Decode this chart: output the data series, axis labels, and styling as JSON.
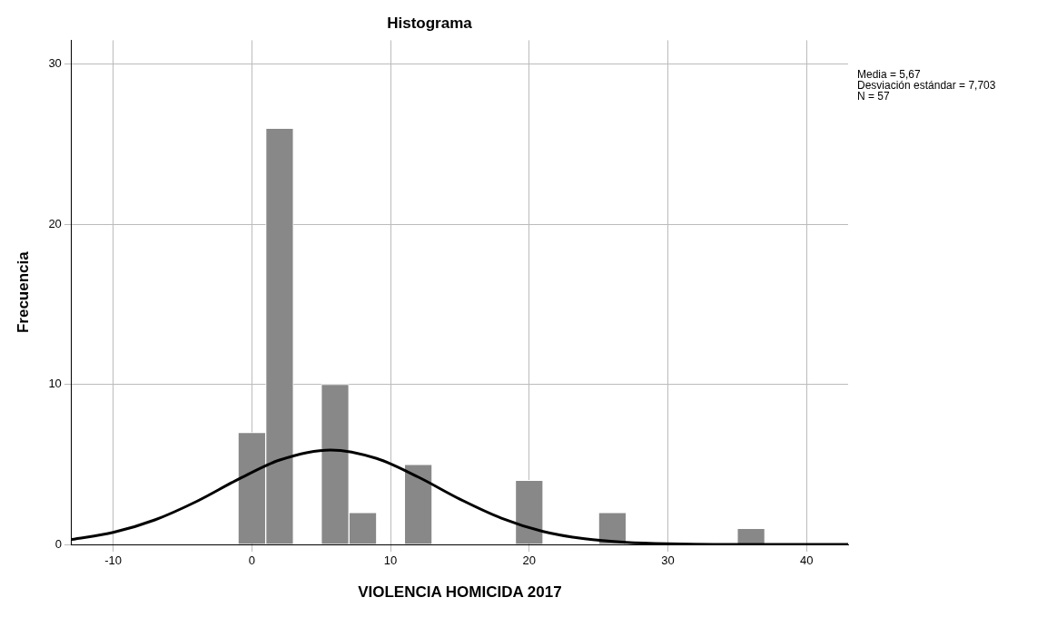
{
  "chart_data": {
    "type": "histogram",
    "title": "Histograma",
    "xlabel": "VIOLENCIA HOMICIDA 2017",
    "ylabel": "Frecuencia",
    "bins": [
      -1,
      1,
      3,
      5,
      7,
      9,
      11,
      13,
      15,
      17,
      19,
      21,
      23,
      25,
      27,
      29,
      31,
      33,
      35,
      37
    ],
    "values": [
      7,
      26,
      0,
      10,
      2,
      0,
      5,
      0,
      0,
      0,
      4,
      0,
      0,
      2,
      0,
      0,
      0,
      0,
      1
    ],
    "color": "#888888",
    "series": [
      {
        "type": "line",
        "color": "#000000",
        "x": [
          -13,
          -10,
          -7,
          -4,
          -1,
          2,
          5.67,
          9,
          12,
          15,
          18,
          21,
          24,
          27,
          30,
          35,
          43
        ],
        "values": [
          0.31,
          0.75,
          1.53,
          2.68,
          4.06,
          5.27,
          5.9,
          5.37,
          4.21,
          2.83,
          1.64,
          0.81,
          0.35,
          0.13,
          0.04,
          0,
          0
        ]
      }
    ],
    "xlim": [
      -13,
      43
    ],
    "xticks": [
      -10,
      0,
      10,
      20,
      30,
      40
    ],
    "ylim": [
      0,
      31.5
    ],
    "yticks": [
      0,
      10,
      20,
      30
    ],
    "grid": true,
    "legend": false,
    "marker": "none",
    "line_style": "solid",
    "annotations": [
      "Media = 5,67",
      "Desviación estándar = 7,703",
      "N = 57"
    ]
  }
}
